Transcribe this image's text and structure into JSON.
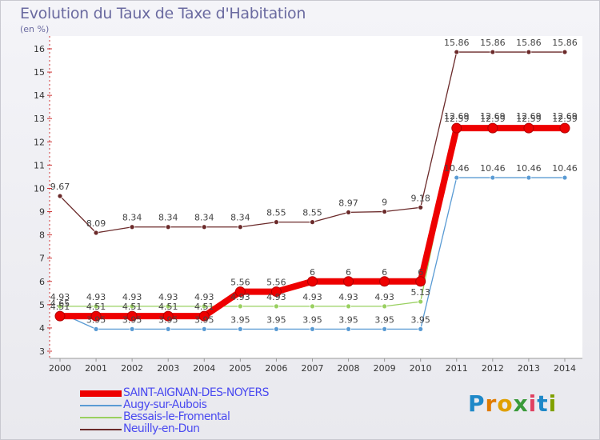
{
  "title": "Evolution du Taux de Taxe d'Habitation",
  "unit": "(en %)",
  "logo": "Proxiti",
  "chart_data": {
    "type": "line",
    "title": "Evolution du Taux de Taxe d'Habitation",
    "ylabel": "(en %)",
    "xlabel": "",
    "ylim": [
      3,
      16
    ],
    "y_ticks": [
      3,
      4,
      5,
      6,
      7,
      8,
      9,
      10,
      11,
      12,
      13,
      14,
      15,
      16
    ],
    "grid": false,
    "legend_position": "bottom-left",
    "x": [
      "2000",
      "2001",
      "2002",
      "2003",
      "2004",
      "2005",
      "2006",
      "2007",
      "2008",
      "2009",
      "2010",
      "2011",
      "2012",
      "2013",
      "2014"
    ],
    "series": [
      {
        "name": "SAINT-AIGNAN-DES-NOYERS",
        "color": "#ee0000",
        "values": [
          4.51,
          4.51,
          4.51,
          4.51,
          4.51,
          5.56,
          5.56,
          6,
          6,
          6,
          6,
          12.59,
          12.59,
          12.59,
          12.59
        ],
        "labels": [
          "4.51",
          "4.51",
          "4.51",
          "4.51",
          "4.51",
          "5.56",
          "5.56",
          "6",
          "6",
          "6",
          "6",
          "12.59",
          "12.59",
          "12.59",
          "12.59"
        ]
      },
      {
        "name": "Augy-sur-Aubois",
        "color": "#5a9bd4",
        "values": [
          4.65,
          3.95,
          3.95,
          3.95,
          3.95,
          3.95,
          3.95,
          3.95,
          3.95,
          3.95,
          3.95,
          10.46,
          10.46,
          10.46,
          10.46
        ],
        "labels": [
          "4.65",
          "3.95",
          "3.95",
          "3.95",
          "3.95",
          "3.95",
          "3.95",
          "3.95",
          "3.95",
          "3.95",
          "3.95",
          "10.46",
          "10.46",
          "10.46",
          "10.46"
        ]
      },
      {
        "name": "Bessais-le-Fromental",
        "color": "#99d060",
        "values": [
          4.93,
          4.93,
          4.93,
          4.93,
          4.93,
          4.93,
          4.93,
          4.93,
          4.93,
          4.93,
          5.13,
          12.69,
          12.69,
          12.69,
          12.69
        ],
        "labels": [
          "4.93",
          "4.93",
          "4.93",
          "4.93",
          "4.93",
          "4.93",
          "4.93",
          "4.93",
          "4.93",
          "4.93",
          "5.13",
          "12.69",
          "12.69",
          "12.69",
          "12.69"
        ]
      },
      {
        "name": "Neuilly-en-Dun",
        "color": "#6b2a2a",
        "values": [
          9.67,
          8.09,
          8.34,
          8.34,
          8.34,
          8.34,
          8.55,
          8.55,
          8.97,
          9,
          9.18,
          15.86,
          15.86,
          15.86,
          15.86
        ],
        "labels": [
          "9.67",
          "8.09",
          "8.34",
          "8.34",
          "8.34",
          "8.34",
          "8.55",
          "8.55",
          "8.97",
          "9",
          "9.18",
          "15.86",
          "15.86",
          "15.86",
          "15.86"
        ]
      }
    ]
  }
}
